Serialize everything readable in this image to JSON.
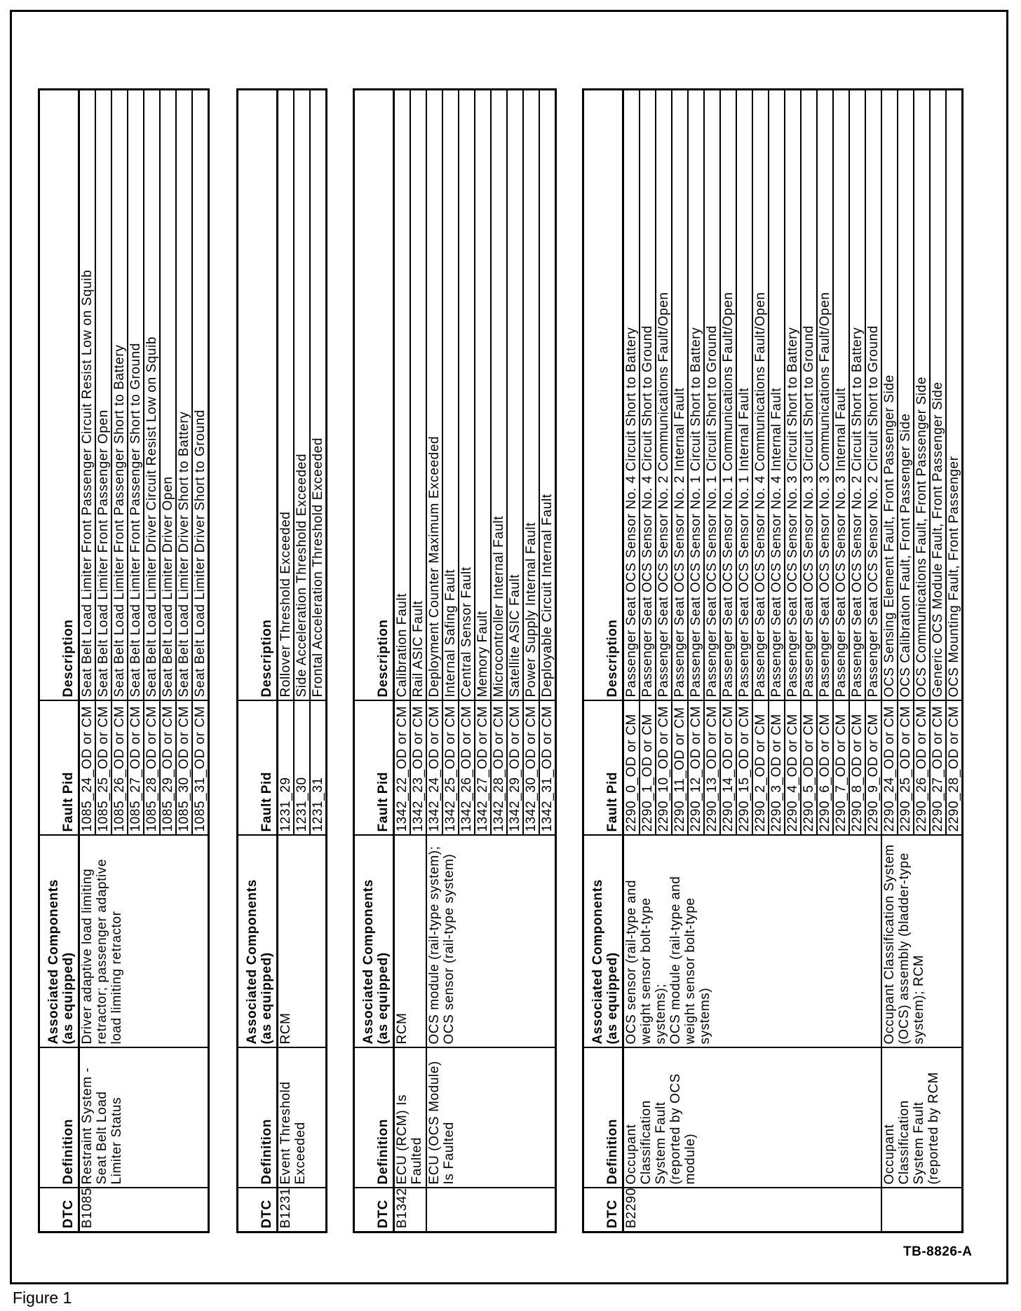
{
  "headers": {
    "dtc": "DTC",
    "definition": "Definition",
    "components_line1": "Associated Components",
    "components_line2": "(as equipped)",
    "fault_pid": "Fault Pid",
    "description": "Description"
  },
  "tables": [
    {
      "groups": [
        {
          "dtc": "B1085",
          "definition": "Restraint System - Seat Belt Load Limiter Status",
          "components": "Driver adaptive load limiting retractor; passenger adaptive load limiting retractor",
          "rows": [
            {
              "fault_pid": "1085_24_OD or CM",
              "description": "Seat Belt Load Limiter Front Passenger Circuit Resist Low on Squib"
            },
            {
              "fault_pid": "1085_25_OD or CM",
              "description": "Seat Belt Load Limiter Front Passenger Open"
            },
            {
              "fault_pid": "1085_26_OD or CM",
              "description": "Seat Belt Load Limiter Front Passenger Short to Battery"
            },
            {
              "fault_pid": "1085_27_OD or CM",
              "description": "Seat Belt Load Limiter Front Passenger Short to Ground"
            },
            {
              "fault_pid": "1085_28_OD or CM",
              "description": "Seat Belt Load Limiter Driver Circuit Resist Low on Squib"
            },
            {
              "fault_pid": "1085_29_OD or CM",
              "description": "Seat Belt Load Limiter Driver Open"
            },
            {
              "fault_pid": "1085_30_OD or CM",
              "description": "Seat Belt Load Limiter Driver Short to Battery"
            },
            {
              "fault_pid": "1085_31_OD or CM",
              "description": "Seat Belt Load Limiter Driver Short to Ground"
            }
          ]
        }
      ]
    },
    {
      "groups": [
        {
          "dtc": "B1231",
          "definition": "Event Threshold Exceeded",
          "components": "RCM",
          "rows": [
            {
              "fault_pid": "1231_29",
              "description": "Rollover Threshold Exceeded"
            },
            {
              "fault_pid": "1231_30",
              "description": "Side Acceleration Threshold Exceeded"
            },
            {
              "fault_pid": "1231_31",
              "description": "Frontal Acceleration Threshold Exceeded"
            }
          ]
        }
      ]
    },
    {
      "groups": [
        {
          "dtc": "B1342",
          "definition": "ECU (RCM) Is Faulted",
          "components": "RCM",
          "rows": [
            {
              "fault_pid": "1342_22_OD or CM",
              "description": "Calibration Fault"
            },
            {
              "fault_pid": "1342_23_OD or CM",
              "description": "Rail ASIC Fault"
            }
          ]
        },
        {
          "dtc": "",
          "definition": "ECU (OCS Module) Is Faulted",
          "components": "OCS module (rail-type system);\nOCS sensor (rail-type system)",
          "rows": [
            {
              "fault_pid": "1342_24_OD or CM",
              "description": "Deployment Counter Maximum Exceeded"
            },
            {
              "fault_pid": "1342_25_OD or CM",
              "description": "Internal Safing Fault"
            },
            {
              "fault_pid": "1342_26_OD or CM",
              "description": "Central Sensor Fault"
            },
            {
              "fault_pid": "1342_27_OD or CM",
              "description": "Memory Fault"
            },
            {
              "fault_pid": "1342_28_OD or CM",
              "description": "Microcontroller Internal Fault"
            },
            {
              "fault_pid": "1342_29_OD or CM",
              "description": "Satellite ASIC Fault"
            },
            {
              "fault_pid": "1342_30_OD or CM",
              "description": "Power Supply Internal Fault"
            },
            {
              "fault_pid": "1342_31_OD or CM",
              "description": "Deployable Circuit Internal Fault"
            }
          ]
        }
      ]
    },
    {
      "groups": [
        {
          "dtc": "B2290",
          "definition": "Occupant Classification System Fault (reported by OCS module)",
          "components": "OCS sensor (rail-type and weight sensor bolt-type systems);\nOCS module (rail-type and weight sensor bolt-type systems)",
          "rows": [
            {
              "fault_pid": "2290_0_OD or CM",
              "description": "Passenger Seat OCS Sensor No. 4 Circuit Short to Battery"
            },
            {
              "fault_pid": "2290_1_OD or CM",
              "description": "Passenger Seat OCS Sensor No. 4 Circuit Short to Ground"
            },
            {
              "fault_pid": "2290_10_OD or CM",
              "description": "Passenger Seat OCS Sensor No. 2 Communications Fault/Open"
            },
            {
              "fault_pid": "2290_11_OD or CM",
              "description": "Passenger Seat OCS Sensor No. 2 Internal Fault"
            },
            {
              "fault_pid": "2290_12_OD or CM",
              "description": "Passenger Seat OCS Sensor No. 1 Circuit Short to Battery"
            },
            {
              "fault_pid": "2290_13_OD or CM",
              "description": "Passenger Seat OCS Sensor No. 1 Circuit Short to Ground"
            },
            {
              "fault_pid": "2290_14_OD or CM",
              "description": "Passenger Seat OCS Sensor No. 1 Communications Fault/Open"
            },
            {
              "fault_pid": "2290_15_OD or CM",
              "description": "Passenger Seat OCS Sensor No. 1 Internal Fault"
            },
            {
              "fault_pid": "2290_2_OD or CM",
              "description": "Passenger Seat OCS Sensor No. 4 Communications Fault/Open"
            },
            {
              "fault_pid": "2290_3_OD or CM",
              "description": "Passenger Seat OCS Sensor No. 4 Internal Fault"
            },
            {
              "fault_pid": "2290_4_OD or CM",
              "description": "Passenger Seat OCS Sensor No. 3 Circuit Short to Battery"
            },
            {
              "fault_pid": "2290_5_OD or CM",
              "description": "Passenger Seat OCS Sensor No. 3 Circuit Short to Ground"
            },
            {
              "fault_pid": "2290_6_OD or CM",
              "description": "Passenger Seat OCS Sensor No. 3 Communications Fault/Open"
            },
            {
              "fault_pid": "2290_7_OD or CM",
              "description": "Passenger Seat OCS Sensor No. 3 Internal Fault"
            },
            {
              "fault_pid": "2290_8_OD or CM",
              "description": "Passenger Seat OCS Sensor No. 2 Circuit Short to Battery"
            },
            {
              "fault_pid": "2290_9_OD or CM",
              "description": "Passenger Seat OCS Sensor No. 2 Circuit Short to Ground"
            }
          ]
        },
        {
          "dtc": "",
          "definition": "Occupant Classification System Fault (reported by RCM",
          "components": "Occupant Classification System (OCS) assembly (bladder-type system); RCM",
          "rows": [
            {
              "fault_pid": "2290_24_OD or CM",
              "description": "OCS Sensing Element Fault, Front Passenger Side"
            },
            {
              "fault_pid": "2290_25_OD or CM",
              "description": "OCS Calibration Fault, Front Passenger Side"
            },
            {
              "fault_pid": "2290_26_OD or CM",
              "description": "OCS Communications Fault, Front Passenger Side"
            },
            {
              "fault_pid": "2290_27_OD or CM",
              "description": "Generic OCS Module Fault, Front Passenger Side"
            },
            {
              "fault_pid": "2290_28_OD or CM",
              "description": "OCS Mounting Fault, Front Passenger"
            }
          ]
        }
      ]
    }
  ],
  "figure_code": "TB-8826-A",
  "caption": "Figure 1"
}
